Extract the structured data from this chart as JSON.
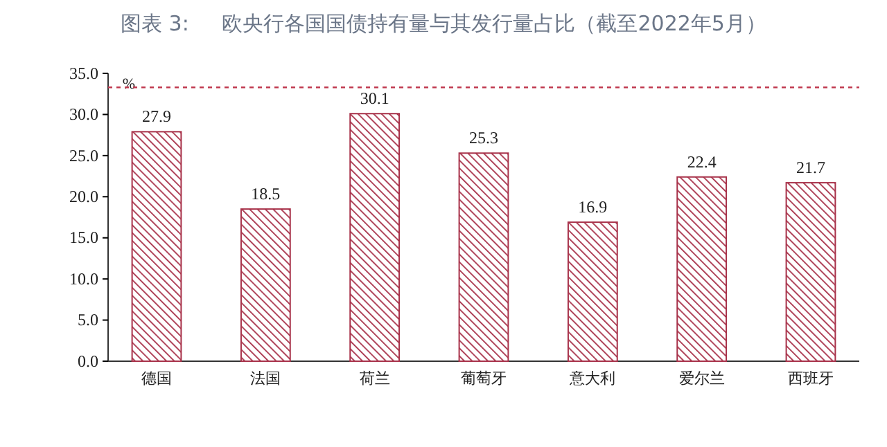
{
  "chart_data": {
    "type": "bar",
    "title": "图表 3:     欧央行各国国债持有量与其发行量占比（截至2022年5月）",
    "ylabel": "%",
    "categories": [
      "德国",
      "法国",
      "荷兰",
      "葡萄牙",
      "意大利",
      "爱尔兰",
      "西班牙"
    ],
    "values": [
      27.9,
      18.5,
      30.1,
      25.3,
      16.9,
      22.4,
      21.7
    ],
    "color": "#a8324a",
    "data_labels": true,
    "ylim": [
      0,
      35
    ],
    "yticks": [
      {
        "value": 0,
        "label": "0.0"
      },
      {
        "value": 5,
        "label": "5.0"
      },
      {
        "value": 10,
        "label": "10.0"
      },
      {
        "value": 15,
        "label": "15.0"
      },
      {
        "value": 20,
        "label": "20.0"
      },
      {
        "value": 25,
        "label": "25.0"
      },
      {
        "value": 30,
        "label": "30.0"
      },
      {
        "value": 35,
        "label": "35.0"
      }
    ],
    "ref_lines": [
      {
        "axis": "y",
        "value": 33.3,
        "label": null,
        "color": "#c0394f",
        "line_style": "dotted"
      }
    ],
    "grid": false
  }
}
